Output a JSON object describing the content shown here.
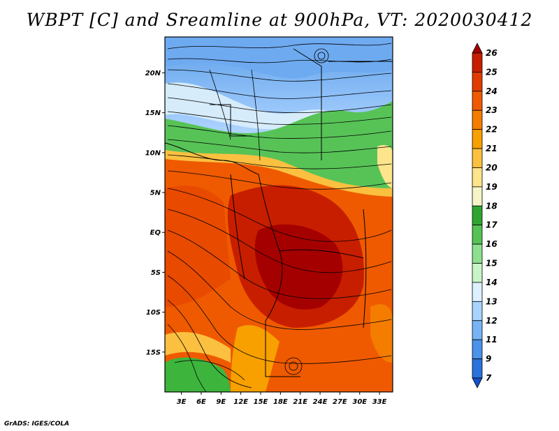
{
  "title": "WBPT [C] and Sreamline at 900hPa, VT: 2020030412",
  "credit": "GrADS: IGES/COLA",
  "map": {
    "lat_labels": [
      {
        "value": 20,
        "label": "20N"
      },
      {
        "value": 15,
        "label": "15N"
      },
      {
        "value": 10,
        "label": "10N"
      },
      {
        "value": 5,
        "label": "5N"
      },
      {
        "value": 0,
        "label": "EQ"
      },
      {
        "value": -5,
        "label": "5S"
      },
      {
        "value": -10,
        "label": "10S"
      },
      {
        "value": -15,
        "label": "15S"
      }
    ],
    "lon_labels": [
      {
        "value": 3,
        "label": "3E"
      },
      {
        "value": 6,
        "label": "6E"
      },
      {
        "value": 9,
        "label": "9E"
      },
      {
        "value": 12,
        "label": "12E"
      },
      {
        "value": 15,
        "label": "15E"
      },
      {
        "value": 18,
        "label": "18E"
      },
      {
        "value": 21,
        "label": "21E"
      },
      {
        "value": 24,
        "label": "24E"
      },
      {
        "value": 27,
        "label": "27E"
      },
      {
        "value": 30,
        "label": "30E"
      },
      {
        "value": 33,
        "label": "33E"
      }
    ],
    "lon_range": [
      0.5,
      35
    ],
    "lat_range": [
      -20,
      24.5
    ]
  },
  "colorbar": {
    "levels": [
      "26",
      "25",
      "24",
      "23",
      "22",
      "21",
      "20",
      "19",
      "18",
      "17",
      "16",
      "15",
      "14",
      "13",
      "12",
      "11",
      "9",
      "7"
    ],
    "colors": [
      "#a50000",
      "#c81e00",
      "#e03c00",
      "#ef5a00",
      "#f47d00",
      "#f7a000",
      "#fbc040",
      "#fde58c",
      "#f5f5c8",
      "#2fa52f",
      "#55c255",
      "#8ee08e",
      "#c8f5c8",
      "#ddf0ff",
      "#a8d4ff",
      "#78b4f5",
      "#4a92ea",
      "#2a72dc",
      "#1450c8"
    ]
  }
}
